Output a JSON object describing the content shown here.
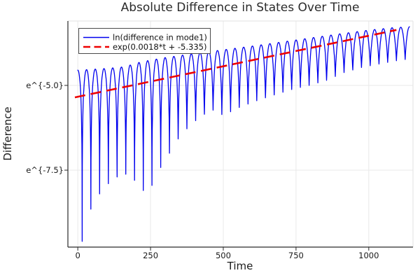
{
  "chart_data": {
    "type": "line",
    "title": "Absolute Difference in States Over Time",
    "x_axis": {
      "label": "Time",
      "range": [
        -34,
        1152
      ],
      "ticks": [
        {
          "value": 0,
          "label": "0"
        },
        {
          "value": 250,
          "label": "250"
        },
        {
          "value": 500,
          "label": "500"
        },
        {
          "value": 750,
          "label": "750"
        },
        {
          "value": 1000,
          "label": "1000"
        }
      ],
      "grid": true
    },
    "y_axis": {
      "label": "Difference",
      "scale": "ln",
      "range_ln": [
        -9.77,
        -3.1
      ],
      "ticks": [
        {
          "value": -5.0,
          "label": "e^{-5.0}"
        },
        {
          "value": -7.5,
          "label": "e^{-7.5}"
        }
      ],
      "grid": true
    },
    "legend": {
      "position": "top-left",
      "border_color": "#4a4a4a",
      "background": "#ffffff"
    },
    "series": [
      {
        "name": "ln(difference in mode1)",
        "color": "#0000ee",
        "style": "solid",
        "line_width": 1.3,
        "model": "ln( exp(dip_env) + (exp(top_env)-exp(dip_env)) * |cos(pi*t/period)| )",
        "period": 30,
        "t_range": [
          0,
          1140
        ],
        "sample_step": 0.5,
        "top_envelope_ln": [
          [
            0,
            -4.55
          ],
          [
            100,
            -4.5
          ],
          [
            160,
            -4.45
          ],
          [
            220,
            -4.3
          ],
          [
            300,
            -4.18
          ],
          [
            400,
            -4.06
          ],
          [
            500,
            -3.95
          ],
          [
            600,
            -3.84
          ],
          [
            700,
            -3.72
          ],
          [
            800,
            -3.6
          ],
          [
            900,
            -3.48
          ],
          [
            1000,
            -3.37
          ],
          [
            1080,
            -3.3
          ],
          [
            1140,
            -3.27
          ]
        ],
        "dip_envelope_ln": [
          [
            15,
            -9.6
          ],
          [
            45,
            -8.65
          ],
          [
            75,
            -8.2
          ],
          [
            105,
            -7.9
          ],
          [
            135,
            -7.7
          ],
          [
            165,
            -7.62
          ],
          [
            195,
            -7.8
          ],
          [
            225,
            -8.1
          ],
          [
            255,
            -7.95
          ],
          [
            285,
            -7.42
          ],
          [
            315,
            -7.0
          ],
          [
            345,
            -6.58
          ],
          [
            375,
            -6.28
          ],
          [
            405,
            -6.04
          ],
          [
            435,
            -5.85
          ],
          [
            465,
            -5.73
          ],
          [
            500,
            -5.88
          ],
          [
            555,
            -5.65
          ],
          [
            615,
            -5.45
          ],
          [
            675,
            -5.28
          ],
          [
            735,
            -5.12
          ],
          [
            795,
            -5.0
          ],
          [
            855,
            -4.85
          ],
          [
            915,
            -4.62
          ],
          [
            975,
            -4.47
          ],
          [
            1035,
            -4.37
          ],
          [
            1095,
            -4.27
          ],
          [
            1140,
            -4.22
          ]
        ]
      },
      {
        "name": "exp(0.0018*t + -5.335)",
        "color": "#ee0000",
        "style": "dashed",
        "line_width": 2.6,
        "slope": 0.0018,
        "intercept": -5.335,
        "t_range": [
          -10,
          1095
        ]
      }
    ],
    "colors": {
      "grid": "#e9e9e9",
      "frame_light": "#e2e2e2",
      "spine": "#2a2a2a",
      "background": "#ffffff",
      "title": "#2b2b2b"
    }
  }
}
